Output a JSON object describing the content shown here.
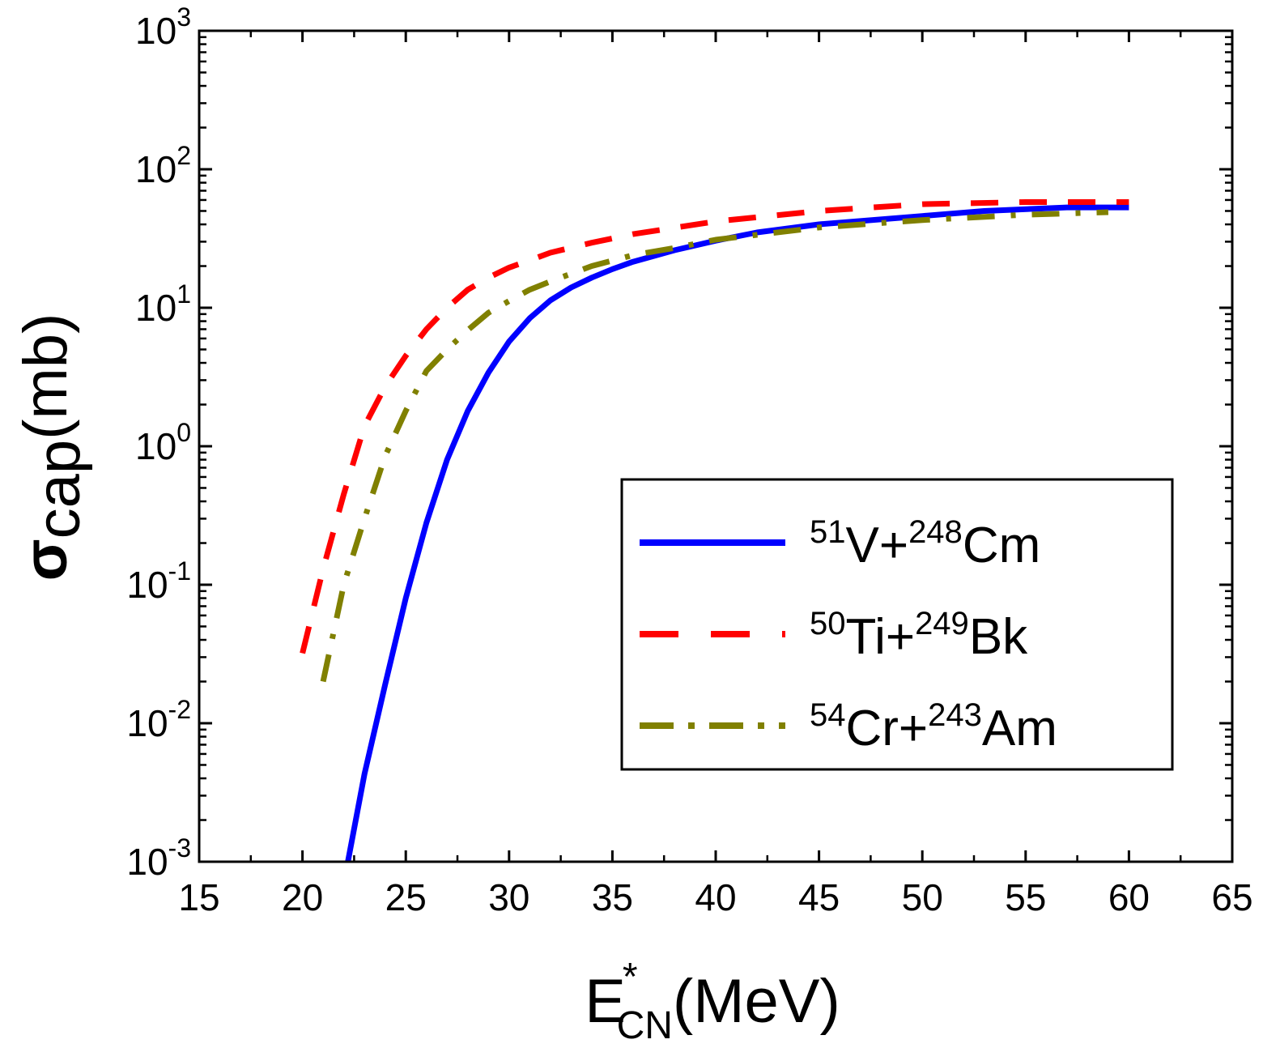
{
  "chart_data": {
    "type": "line",
    "title": "",
    "x_axis": {
      "label_main": "E",
      "label_sup": "*",
      "label_sub": "CN",
      "label_tail": "(MeV)",
      "range": [
        15,
        65
      ],
      "ticks": [
        "15",
        "20",
        "25",
        "30",
        "35",
        "40",
        "45",
        "50",
        "55",
        "60",
        "65"
      ]
    },
    "y_axis": {
      "label_main": "σ",
      "label_sub": "cap",
      "label_tail": "(mb)",
      "scale": "log",
      "range": [
        0.001,
        1000
      ],
      "tick_values": [
        0.001,
        0.01,
        0.1,
        1,
        10,
        100,
        1000
      ],
      "tick_base": "10",
      "tick_exponents": [
        "-3",
        "-2",
        "-1",
        "0",
        "1",
        "2",
        "3"
      ]
    },
    "legend": {
      "position": "right",
      "entries": [
        {
          "pre_mass": "51",
          "projectile": "V+",
          "post_mass": "248",
          "target": "Cm"
        },
        {
          "pre_mass": "50",
          "projectile": "Ti+",
          "post_mass": "249",
          "target": "Bk"
        },
        {
          "pre_mass": "54",
          "projectile": "Cr+",
          "post_mass": "243",
          "target": "Am"
        }
      ]
    },
    "series": [
      {
        "name": "51V+248Cm",
        "color": "#0000ff",
        "style": "solid",
        "x": [
          22.2,
          23,
          24,
          25,
          26,
          27,
          28,
          29,
          30,
          31,
          32,
          33,
          34,
          35,
          36,
          38,
          40,
          42,
          45,
          50,
          53,
          57,
          60
        ],
        "y": [
          0.001,
          0.0043,
          0.019,
          0.08,
          0.28,
          0.8,
          1.8,
          3.4,
          5.7,
          8.4,
          11.3,
          14,
          16.5,
          19,
          21.5,
          26,
          30.5,
          35,
          40,
          46,
          50,
          53,
          53
        ]
      },
      {
        "name": "50Ti+249Bk",
        "color": "#ff0000",
        "style": "dashed",
        "x": [
          20,
          21,
          22,
          23,
          24,
          25,
          26,
          27,
          28,
          29,
          30,
          31,
          32,
          34,
          36,
          40,
          45,
          50,
          55,
          60
        ],
        "y": [
          0.032,
          0.13,
          0.45,
          1.4,
          2.7,
          4.5,
          7.0,
          10.0,
          13.5,
          16.5,
          19.5,
          22,
          25,
          29.5,
          34,
          42,
          50,
          56,
          58,
          58
        ]
      },
      {
        "name": "54Cr+243Am",
        "color": "#808000",
        "style": "dashdot",
        "x": [
          21,
          22,
          23,
          24,
          25,
          26,
          27,
          28,
          29,
          30,
          31,
          32,
          34,
          36,
          38,
          40,
          45,
          50,
          55,
          59
        ],
        "y": [
          0.02,
          0.1,
          0.3,
          0.85,
          1.8,
          3.5,
          5.0,
          6.9,
          9.2,
          11.2,
          13.5,
          15.5,
          20,
          24,
          27,
          31,
          38,
          43,
          47,
          49
        ]
      }
    ]
  }
}
